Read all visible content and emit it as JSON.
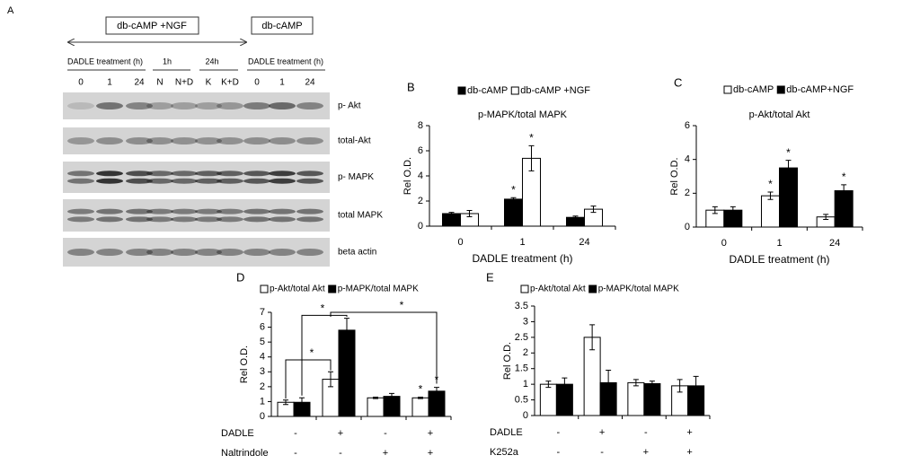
{
  "panel_a": {
    "label": "A",
    "group_boxes": [
      "db-cAMP +NGF",
      "db-cAMP"
    ],
    "headers": [
      "DADLE  treatment (h)",
      "1h",
      "24h",
      "DADLE treatment (h)"
    ],
    "lanes": [
      "0",
      "1",
      "24",
      "N",
      "N+D",
      "K",
      "K+D",
      "0",
      "1",
      "24"
    ],
    "blots": [
      "p- Akt",
      "total-Akt",
      "p- MAPK",
      "total MAPK",
      "beta actin"
    ]
  },
  "chart_data": [
    {
      "type": "bar",
      "panel": "B",
      "title": "p-MAPK/total MAPK",
      "y_label": "Rel O.D.",
      "x_label": "DADLE treatment (h)",
      "categories": [
        "0",
        "1",
        "24"
      ],
      "series": [
        {
          "name": "db-cAMP",
          "color": "#000000",
          "values": [
            1.0,
            2.15,
            0.7
          ],
          "errors": [
            0.1,
            0.12,
            0.1
          ],
          "value_labels": [
            null,
            "*",
            null
          ]
        },
        {
          "name": "db-cAMP +NGF",
          "color": "#ffffff",
          "values": [
            1.0,
            5.4,
            1.35
          ],
          "errors": [
            0.25,
            1.0,
            0.25
          ],
          "value_labels": [
            null,
            "*",
            null
          ]
        }
      ],
      "ylim": [
        0,
        8
      ],
      "yticks": [
        0,
        2,
        4,
        6,
        8
      ]
    },
    {
      "type": "bar",
      "panel": "C",
      "title": "p-Akt/total Akt",
      "y_label": "Rel O.D.",
      "x_label": "DADLE treatment (h)",
      "categories": [
        "0",
        "1",
        "24"
      ],
      "series": [
        {
          "name": "db-cAMP",
          "color": "#ffffff",
          "values": [
            1.0,
            1.85,
            0.6
          ],
          "errors": [
            0.2,
            0.22,
            0.15
          ],
          "value_labels": [
            null,
            "*",
            null
          ]
        },
        {
          "name": "db-cAMP+NGF",
          "color": "#000000",
          "values": [
            1.0,
            3.5,
            2.15
          ],
          "errors": [
            0.2,
            0.45,
            0.35
          ],
          "value_labels": [
            null,
            "*",
            "*"
          ]
        }
      ],
      "ylim": [
        0,
        6
      ],
      "yticks": [
        0,
        2,
        4,
        6
      ]
    },
    {
      "type": "bar",
      "panel": "D",
      "y_label": "Rel O.D.",
      "categories": [
        null,
        null,
        null,
        null
      ],
      "rows": [
        {
          "label": "DADLE",
          "values": [
            "-",
            "+",
            "-",
            "+"
          ]
        },
        {
          "label": "Naltrindole",
          "values": [
            "-",
            "-",
            "+",
            "+"
          ]
        }
      ],
      "series": [
        {
          "name": "p-Akt/total Akt",
          "color": "#ffffff",
          "values": [
            0.95,
            2.5,
            1.25,
            1.25
          ],
          "errors": [
            0.15,
            0.5,
            0.05,
            0.05
          ],
          "value_labels": [
            null,
            null,
            null,
            "*"
          ]
        },
        {
          "name": "p-MAPK/total MAPK",
          "color": "#000000",
          "values": [
            0.95,
            5.8,
            1.35,
            1.7
          ],
          "errors": [
            0.3,
            0.8,
            0.2,
            0.25
          ],
          "value_labels": [
            null,
            null,
            null,
            "*"
          ]
        }
      ],
      "annotations": [
        "*",
        "*",
        "*"
      ],
      "ylim": [
        0,
        7
      ],
      "yticks": [
        0,
        1,
        2,
        3,
        4,
        5,
        6,
        7
      ]
    },
    {
      "type": "bar",
      "panel": "E",
      "y_label": "Rel O.D.",
      "categories": [
        null,
        null,
        null,
        null
      ],
      "rows": [
        {
          "label": "DADLE",
          "values": [
            "-",
            "+",
            "-",
            "+"
          ]
        },
        {
          "label": "K252a",
          "values": [
            "-",
            "-",
            "+",
            "+"
          ]
        }
      ],
      "series": [
        {
          "name": "p-Akt/total Akt",
          "color": "#ffffff",
          "values": [
            1.0,
            2.5,
            1.05,
            0.95
          ],
          "errors": [
            0.1,
            0.4,
            0.1,
            0.2
          ]
        },
        {
          "name": "p-MAPK/total MAPK",
          "color": "#000000",
          "values": [
            1.0,
            1.05,
            1.02,
            0.95
          ],
          "errors": [
            0.2,
            0.4,
            0.08,
            0.3
          ]
        }
      ],
      "ylim": [
        0,
        3.5
      ],
      "yticks": [
        0,
        0.5,
        1,
        1.5,
        2,
        2.5,
        3,
        3.5
      ]
    }
  ]
}
